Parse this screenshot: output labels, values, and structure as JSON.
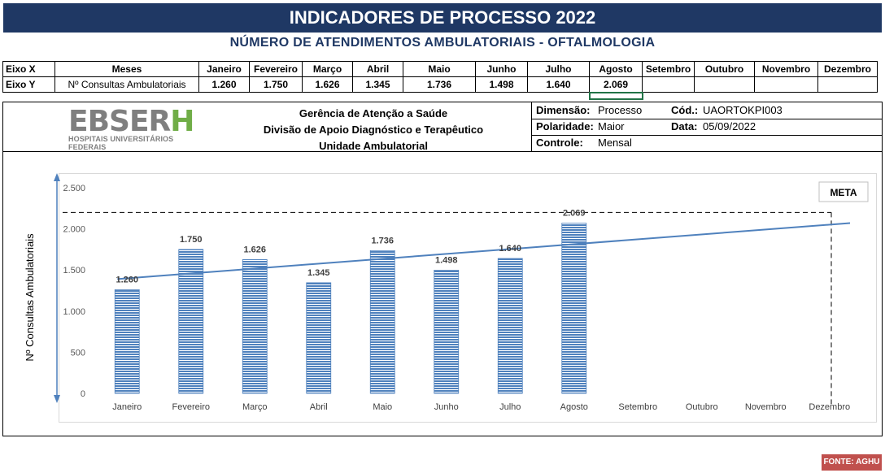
{
  "header": {
    "title": "INDICADORES DE PROCESSO 2022",
    "subtitle": "NÚMERO DE ATENDIMENTOS AMBULATORIAIS - OFTALMOLOGIA"
  },
  "axis_table": {
    "x_label": "Eixo X",
    "y_label": "Eixo Y",
    "x_name": "Meses",
    "y_name": "Nº Consultas Ambulatoriais",
    "months": [
      "Janeiro",
      "Fevereiro",
      "Março",
      "Abril",
      "Maio",
      "Junho",
      "Julho",
      "Agosto",
      "Setembro",
      "Outubro",
      "Novembro",
      "Dezembro"
    ],
    "values": [
      "1.260",
      "1.750",
      "1.626",
      "1.345",
      "1.736",
      "1.498",
      "1.640",
      "2.069",
      "",
      "",
      "",
      ""
    ]
  },
  "info": {
    "logo_word_gray": "EBSER",
    "logo_word_green": "H",
    "logo_tagline": "HOSPITAIS UNIVERSITÁRIOS FEDERAIS",
    "org_line1": "Gerência de Atenção a Saúde",
    "org_line2": "Divisão de Apoio Diagnóstico e Terapêutico",
    "org_line3": "Unidade Ambulatorial",
    "dimensao_label": "Dimensão:",
    "dimensao_value": "Processo",
    "cod_label": "Cód.:",
    "cod_value": "UAORTOKPI003",
    "polaridade_label": "Polaridade:",
    "polaridade_value": "Maior",
    "data_label": "Data:",
    "data_value": "05/09/2022",
    "controle_label": "Controle:",
    "controle_value": "Mensal"
  },
  "chart_data": {
    "type": "bar",
    "categories": [
      "Janeiro",
      "Fevereiro",
      "Março",
      "Abril",
      "Maio",
      "Junho",
      "Julho",
      "Agosto",
      "Setembro",
      "Outubro",
      "Novembro",
      "Dezembro"
    ],
    "values": [
      1260,
      1750,
      1626,
      1345,
      1736,
      1498,
      1640,
      2069,
      null,
      null,
      null,
      null
    ],
    "data_labels": [
      "1.260",
      "1.750",
      "1.626",
      "1.345",
      "1.736",
      "1.498",
      "1.640",
      "2.069",
      "",
      "",
      "",
      ""
    ],
    "ylabel": "Nº Consultas Ambulatoriais",
    "xlabel": "",
    "ylim": [
      0,
      2500
    ],
    "yticks": [
      0,
      500,
      1000,
      1500,
      2000,
      2500
    ],
    "ytick_labels": [
      "0",
      "500",
      "1.000",
      "1.500",
      "2.000",
      "2.500"
    ],
    "meta_label": "META",
    "meta_value": 2200,
    "trendline": {
      "start": 1390,
      "end": 2070
    },
    "bar_color": "#4f81bd",
    "trend_color": "#4f81bd"
  },
  "footer": {
    "source": "FONTE: AGHU"
  }
}
